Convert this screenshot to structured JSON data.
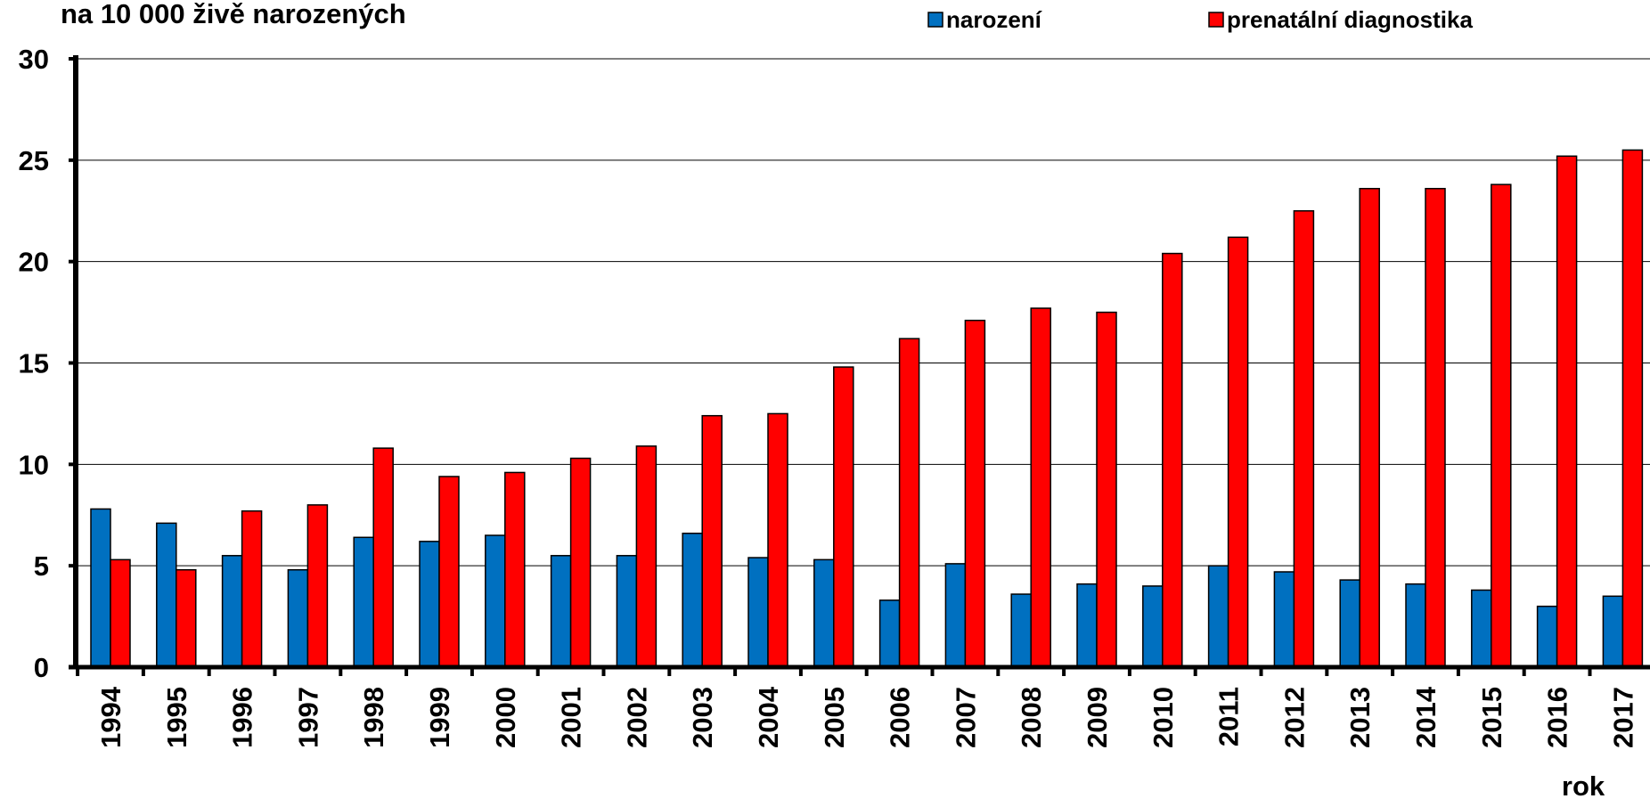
{
  "chart_data": {
    "type": "bar",
    "title": "na 10 000 živě narozených",
    "x_label": "rok",
    "categories": [
      "1994",
      "1995",
      "1996",
      "1997",
      "1998",
      "1999",
      "2000",
      "2001",
      "2002",
      "2003",
      "2004",
      "2005",
      "2006",
      "2007",
      "2008",
      "2009",
      "2010",
      "2011",
      "2012",
      "2013",
      "2014",
      "2015",
      "2016",
      "2017"
    ],
    "series": [
      {
        "name": "narození",
        "color": "#0070c0",
        "values": [
          7.8,
          7.1,
          5.5,
          4.8,
          6.4,
          6.2,
          6.5,
          5.5,
          5.5,
          6.6,
          5.4,
          5.3,
          3.3,
          5.1,
          3.6,
          4.1,
          4.0,
          5.0,
          4.7,
          4.3,
          4.1,
          3.8,
          3.0,
          3.5
        ]
      },
      {
        "name": "prenatální diagnostika",
        "color": "#ff0000",
        "values": [
          5.3,
          4.8,
          7.7,
          8.0,
          10.8,
          9.4,
          9.6,
          10.3,
          10.9,
          12.4,
          12.5,
          14.8,
          16.2,
          17.1,
          17.7,
          17.5,
          20.4,
          21.2,
          22.5,
          23.6,
          23.6,
          23.8,
          25.2,
          25.5
        ]
      }
    ],
    "ylim": [
      0,
      30
    ],
    "yticks": [
      0,
      5,
      10,
      15,
      20,
      25,
      30
    ],
    "grid": true
  }
}
